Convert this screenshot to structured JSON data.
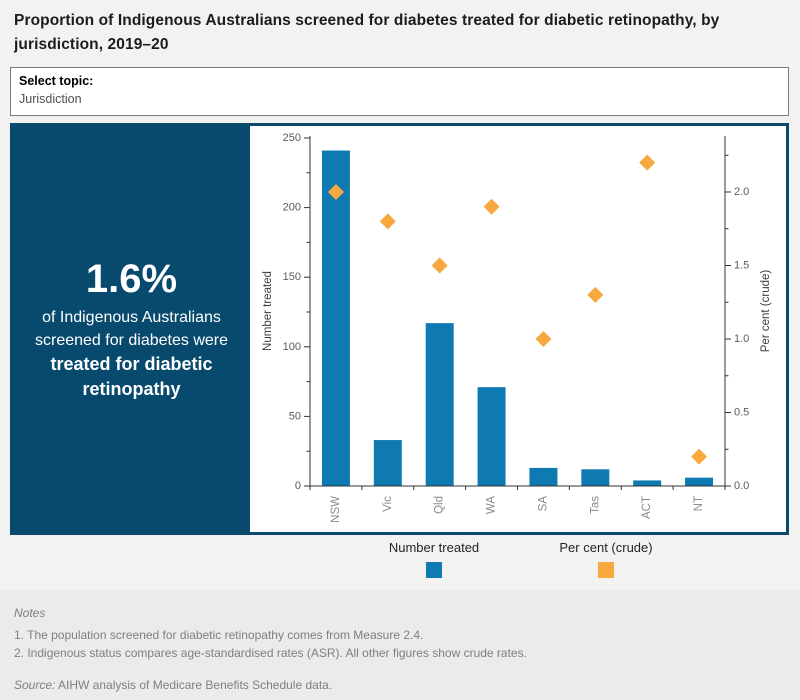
{
  "header": {
    "title": "Proportion of Indigenous Australians screened for diabetes treated for diabetic retinopathy, by jurisdiction, 2019–20"
  },
  "topic_selector": {
    "label": "Select topic:",
    "value": "Jurisdiction"
  },
  "headline": {
    "value": "1.6%",
    "description": "of Indigenous Australians screened for diabetes were",
    "emphasis": "treated for diabetic retinopathy"
  },
  "chart_data": {
    "type": "bar",
    "subtype": "combo-bar-with-diamond-markers",
    "categories": [
      "NSW",
      "Vic",
      "Qld",
      "WA",
      "SA",
      "Tas",
      "ACT",
      "NT"
    ],
    "series": [
      {
        "name": "Number treated",
        "type": "bar",
        "axis": "left",
        "color": "#0f79b2",
        "values": [
          241,
          33,
          117,
          71,
          13,
          12,
          4,
          6
        ]
      },
      {
        "name": "Per cent (crude)",
        "type": "scatter",
        "marker": "diamond",
        "axis": "right",
        "color": "#f7a83e",
        "values": [
          2.0,
          1.8,
          1.5,
          1.9,
          1.0,
          1.3,
          2.2,
          0.2
        ]
      }
    ],
    "left_axis": {
      "label": "Number treated",
      "min": 0,
      "max": 250,
      "major_step": 50,
      "minor_step": 25,
      "tick_labels": [
        "0",
        "50",
        "100",
        "150",
        "200",
        "250"
      ]
    },
    "right_axis": {
      "label": "Per cent (crude)",
      "min": 0.0,
      "max": 2.25,
      "major_step": 0.5,
      "minor_step": 0.25,
      "tick_labels": [
        "0.0",
        "0.5",
        "1.0",
        "1.5",
        "2.0"
      ]
    },
    "grid": false,
    "legend_position": "bottom"
  },
  "legend": [
    {
      "label": "Number treated",
      "color": "#0f79b2"
    },
    {
      "label": "Per cent (crude)",
      "color": "#f7a83e"
    }
  ],
  "notes": {
    "title": "Notes",
    "line1": "1. The population screened for diabetic retinopathy comes from Measure 2.4.",
    "line2": "2. Indigenous status compares age-standardised rates (ASR). All other figures show crude rates.",
    "source_label": "Source:",
    "source_text": "AIHW analysis of Medicare Benefits Schedule data."
  },
  "colors": {
    "panel_navy": "#084a6e",
    "border_navy": "#0b4a6e",
    "bar_blue": "#0f79b2",
    "marker_orange": "#f7a83e",
    "axis_line": "#333333",
    "tick_label": "#5a5a5a",
    "category_label": "#8a8a8a",
    "axis_title": "#3c3c3c",
    "page_background": "#f2f2f1",
    "notes_background": "#ebebea"
  }
}
